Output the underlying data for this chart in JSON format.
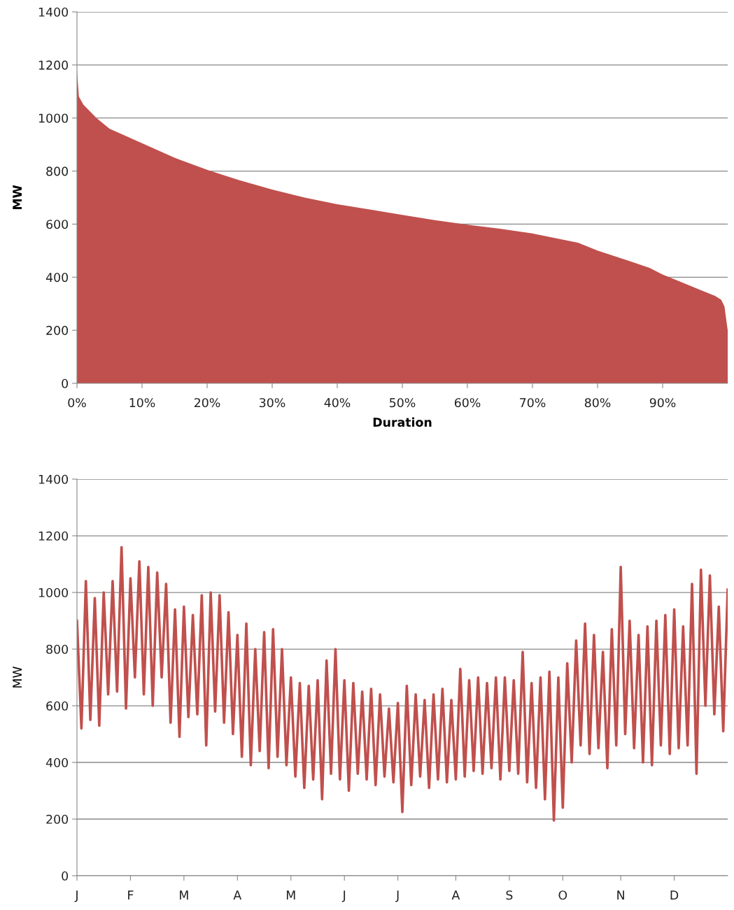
{
  "chart_data": [
    {
      "type": "area",
      "xlabel": "Duration",
      "ylabel": "MW",
      "grid": "y",
      "x": [
        0,
        0.3,
        1,
        3,
        5,
        10,
        15,
        20,
        25,
        30,
        35,
        40,
        45,
        50,
        55,
        60,
        65,
        70,
        75,
        77,
        80,
        85,
        88,
        90,
        92,
        95,
        98,
        99,
        99.5,
        100
      ],
      "series": [
        {
          "color": "#c0504d",
          "values": [
            1180,
            1080,
            1050,
            1000,
            960,
            905,
            850,
            805,
            765,
            730,
            700,
            675,
            655,
            635,
            615,
            598,
            583,
            565,
            540,
            530,
            500,
            460,
            435,
            410,
            390,
            360,
            330,
            315,
            290,
            200
          ]
        }
      ],
      "xlim": [
        0,
        100
      ],
      "ylim": [
        0,
        1400
      ],
      "xticks": [
        {
          "value": 0,
          "label": "0%"
        },
        {
          "value": 10,
          "label": "10%"
        },
        {
          "value": 20,
          "label": "20%"
        },
        {
          "value": 30,
          "label": "30%"
        },
        {
          "value": 40,
          "label": "40%"
        },
        {
          "value": 50,
          "label": "50%"
        },
        {
          "value": 60,
          "label": "60%"
        },
        {
          "value": 70,
          "label": "70%"
        },
        {
          "value": 80,
          "label": "80%"
        },
        {
          "value": 90,
          "label": "90%"
        }
      ],
      "yticks": [
        0,
        200,
        400,
        600,
        800,
        1000,
        1200,
        1400
      ]
    },
    {
      "type": "line",
      "ylabel": "MW",
      "grid": "y",
      "marker": "none",
      "line_style": "solid",
      "categories": [
        "J",
        null,
        null,
        null,
        null,
        null,
        null,
        null,
        null,
        null,
        null,
        null,
        "F",
        null,
        null,
        null,
        null,
        null,
        null,
        null,
        null,
        null,
        null,
        null,
        "M",
        null,
        null,
        null,
        null,
        null,
        null,
        null,
        null,
        null,
        null,
        null,
        "A",
        null,
        null,
        null,
        null,
        null,
        null,
        null,
        null,
        null,
        null,
        null,
        "M",
        null,
        null,
        null,
        null,
        null,
        null,
        null,
        null,
        null,
        null,
        null,
        "J",
        null,
        null,
        null,
        null,
        null,
        null,
        null,
        null,
        null,
        null,
        null,
        "J",
        null,
        null,
        null,
        null,
        null,
        null,
        null,
        null,
        null,
        null,
        null,
        null,
        "A",
        null,
        null,
        null,
        null,
        null,
        null,
        null,
        null,
        null,
        null,
        null,
        "S",
        null,
        null,
        null,
        null,
        null,
        null,
        null,
        null,
        null,
        null,
        null,
        "O",
        null,
        null,
        null,
        null,
        null,
        null,
        null,
        null,
        null,
        null,
        null,
        null,
        "N",
        null,
        null,
        null,
        null,
        null,
        null,
        null,
        null,
        null,
        null,
        null,
        "D",
        null,
        null,
        null,
        null,
        null,
        null,
        null,
        null,
        null,
        null,
        null,
        null
      ],
      "series": [
        {
          "color": "#c0504d",
          "values": [
            900,
            520,
            1040,
            550,
            980,
            530,
            1000,
            640,
            1040,
            650,
            1160,
            590,
            1050,
            700,
            1110,
            640,
            1090,
            600,
            1070,
            700,
            1030,
            540,
            940,
            490,
            950,
            560,
            920,
            570,
            990,
            460,
            1000,
            580,
            990,
            540,
            930,
            500,
            850,
            420,
            890,
            390,
            800,
            440,
            860,
            380,
            870,
            420,
            800,
            390,
            700,
            350,
            680,
            310,
            670,
            340,
            690,
            270,
            760,
            360,
            800,
            340,
            690,
            300,
            680,
            360,
            650,
            340,
            660,
            320,
            640,
            350,
            590,
            330,
            610,
            225,
            670,
            320,
            640,
            350,
            620,
            310,
            640,
            340,
            660,
            330,
            620,
            340,
            730,
            350,
            690,
            370,
            700,
            360,
            680,
            380,
            700,
            340,
            700,
            370,
            690,
            360,
            790,
            330,
            680,
            310,
            700,
            270,
            720,
            195,
            700,
            240,
            750,
            400,
            830,
            460,
            890,
            430,
            850,
            450,
            790,
            380,
            870,
            460,
            1090,
            500,
            900,
            450,
            850,
            400,
            880,
            390,
            900,
            460,
            920,
            430,
            940,
            450,
            880,
            460,
            1030,
            360,
            1080,
            600,
            1060,
            570,
            950,
            510,
            1010
          ]
        }
      ],
      "ylim": [
        0,
        1400
      ],
      "yticks": [
        0,
        200,
        400,
        600,
        800,
        1000,
        1200,
        1400
      ]
    }
  ]
}
